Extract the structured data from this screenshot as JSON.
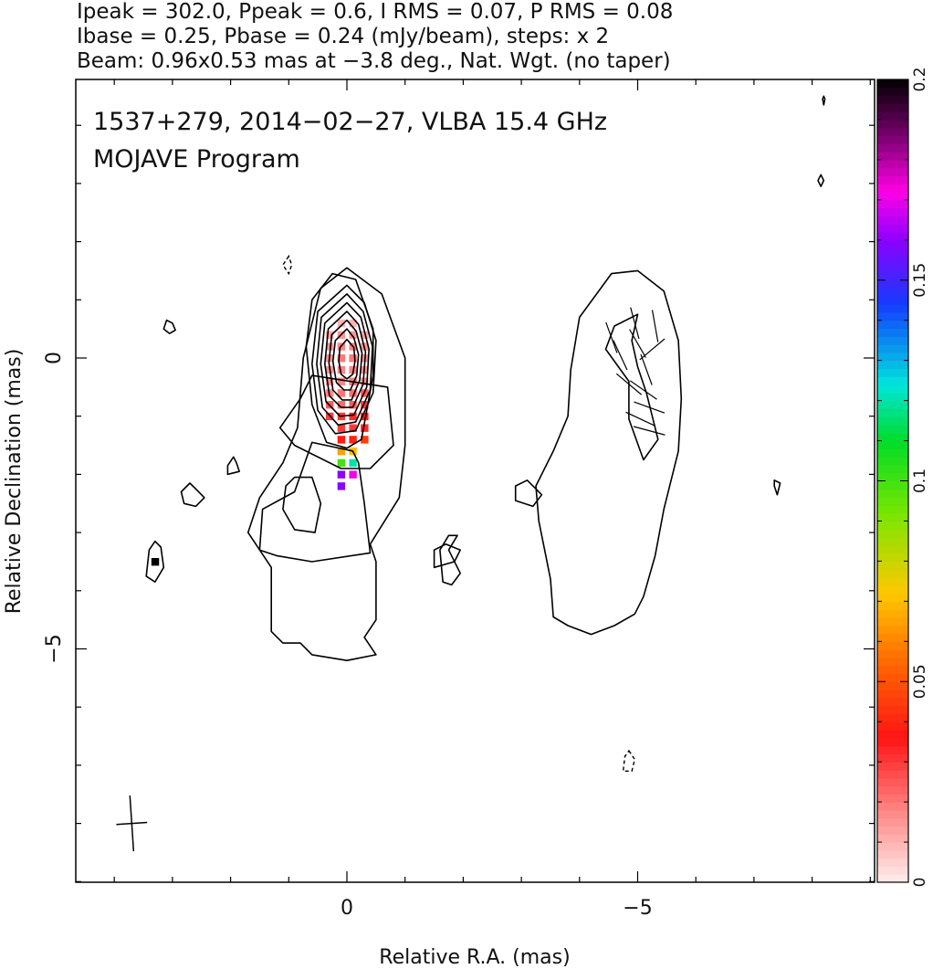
{
  "header": {
    "line1": "Ipeak = 302.0, Ppeak = 0.6, I RMS = 0.07, P RMS = 0.08",
    "line2": "Ibase = 0.25, Pbase = 0.24 (mJy/beam), steps: x 2",
    "line3": "Beam: 0.96x0.53 mas at −3.8 deg., Nat. Wgt. (no taper)"
  },
  "plot_labels": {
    "title": "1537+279, 2014−02−27, VLBA 15.4 GHz",
    "program": "MOJAVE Program"
  },
  "chart_data": {
    "type": "heatmap",
    "xlabel": "Relative R.A. (mas)",
    "ylabel": "Relative Declination (mas)",
    "x_range": [
      4.0,
      -9.0
    ],
    "y_range": [
      -9.0,
      4.8
    ],
    "x_ticks": [
      {
        "value": 0,
        "label": "0"
      },
      {
        "value": -5,
        "label": "−5"
      }
    ],
    "y_ticks": [
      {
        "value": 0,
        "label": "0"
      },
      {
        "value": -5,
        "label": "−5"
      }
    ],
    "colorbar": {
      "range": [
        0,
        0.2
      ],
      "ticks": [
        {
          "value": 0,
          "label": "0"
        },
        {
          "value": 0.05,
          "label": "0.05"
        },
        {
          "value": 0.1,
          "label": "0.1"
        },
        {
          "value": 0.15,
          "label": "0.15"
        },
        {
          "value": 0.2,
          "label": "0.2"
        }
      ]
    },
    "image_stats": {
      "ipeak": 302.0,
      "ppeak": 0.6,
      "i_rms": 0.07,
      "p_rms": 0.08,
      "ibase": 0.25,
      "pbase": 0.24,
      "unit": "mJy/beam",
      "step_factor": 2
    },
    "beam": {
      "major_mas": 0.96,
      "minor_mas": 0.53,
      "pa_deg": -3.8
    },
    "core": {
      "x": 0,
      "y": 0
    },
    "pol_pixels": [
      {
        "x": 0.1,
        "y": 0.6,
        "v": 0.01
      },
      {
        "x": -0.1,
        "y": 0.6,
        "v": 0.01
      },
      {
        "x": 0.3,
        "y": 0.4,
        "v": 0.012
      },
      {
        "x": 0.1,
        "y": 0.4,
        "v": 0.015
      },
      {
        "x": -0.1,
        "y": 0.4,
        "v": 0.015
      },
      {
        "x": -0.3,
        "y": 0.4,
        "v": 0.012
      },
      {
        "x": 0.3,
        "y": 0.2,
        "v": 0.015
      },
      {
        "x": 0.1,
        "y": 0.2,
        "v": 0.018
      },
      {
        "x": -0.1,
        "y": 0.2,
        "v": 0.018
      },
      {
        "x": -0.3,
        "y": 0.2,
        "v": 0.015
      },
      {
        "x": 0.3,
        "y": 0.0,
        "v": 0.015
      },
      {
        "x": 0.1,
        "y": 0.0,
        "v": 0.02
      },
      {
        "x": -0.1,
        "y": 0.0,
        "v": 0.02
      },
      {
        "x": -0.3,
        "y": 0.0,
        "v": 0.015
      },
      {
        "x": 0.3,
        "y": -0.2,
        "v": 0.015
      },
      {
        "x": 0.1,
        "y": -0.2,
        "v": 0.018
      },
      {
        "x": -0.1,
        "y": -0.2,
        "v": 0.018
      },
      {
        "x": -0.3,
        "y": -0.2,
        "v": 0.015
      },
      {
        "x": 0.3,
        "y": -0.4,
        "v": 0.015
      },
      {
        "x": 0.1,
        "y": -0.4,
        "v": 0.018
      },
      {
        "x": -0.1,
        "y": -0.4,
        "v": 0.02
      },
      {
        "x": -0.3,
        "y": -0.4,
        "v": 0.015
      },
      {
        "x": 0.3,
        "y": -0.6,
        "v": 0.018
      },
      {
        "x": 0.1,
        "y": -0.6,
        "v": 0.02
      },
      {
        "x": -0.1,
        "y": -0.6,
        "v": 0.022
      },
      {
        "x": -0.3,
        "y": -0.6,
        "v": 0.025
      },
      {
        "x": 0.3,
        "y": -0.8,
        "v": 0.025
      },
      {
        "x": 0.1,
        "y": -0.8,
        "v": 0.022
      },
      {
        "x": -0.1,
        "y": -0.8,
        "v": 0.025
      },
      {
        "x": -0.3,
        "y": -0.8,
        "v": 0.03
      },
      {
        "x": 0.3,
        "y": -1.0,
        "v": 0.03
      },
      {
        "x": 0.1,
        "y": -1.0,
        "v": 0.03
      },
      {
        "x": -0.1,
        "y": -1.0,
        "v": 0.032
      },
      {
        "x": -0.3,
        "y": -1.0,
        "v": 0.035
      },
      {
        "x": 0.1,
        "y": -1.2,
        "v": 0.03
      },
      {
        "x": -0.1,
        "y": -1.2,
        "v": 0.03
      },
      {
        "x": -0.3,
        "y": -1.2,
        "v": 0.033
      },
      {
        "x": 0.1,
        "y": -1.4,
        "v": 0.038
      },
      {
        "x": -0.1,
        "y": -1.4,
        "v": 0.04
      },
      {
        "x": -0.3,
        "y": -1.4,
        "v": 0.045
      },
      {
        "x": 0.1,
        "y": -1.6,
        "v": 0.065
      },
      {
        "x": -0.1,
        "y": -1.6,
        "v": 0.07
      },
      {
        "x": 0.1,
        "y": -1.8,
        "v": 0.1
      },
      {
        "x": -0.1,
        "y": -1.8,
        "v": 0.12
      },
      {
        "x": 0.1,
        "y": -2.0,
        "v": 0.16
      },
      {
        "x": -0.1,
        "y": -2.0,
        "v": 0.17
      },
      {
        "x": 0.1,
        "y": -2.2,
        "v": 0.16
      },
      {
        "x": 3.3,
        "y": -3.5,
        "v": 0.2
      }
    ],
    "contours": [
      [
        [
          -0.5,
          -5.1
        ],
        [
          -0.3,
          -4.8
        ],
        [
          -0.5,
          -4.5
        ],
        [
          -0.5,
          -3.5
        ],
        [
          -0.4,
          -3.2
        ],
        [
          -0.9,
          -2.4
        ],
        [
          -1.0,
          -1.5
        ],
        [
          -1.0,
          0
        ],
        [
          -0.6,
          1.1
        ],
        [
          0,
          1.55
        ],
        [
          0.45,
          1.2
        ],
        [
          0.75,
          0
        ],
        [
          0.85,
          -1.2
        ],
        [
          1.1,
          -1.8
        ],
        [
          1.5,
          -2.4
        ],
        [
          1.7,
          -3.0
        ],
        [
          1.3,
          -3.6
        ],
        [
          1.3,
          -4.3
        ],
        [
          1.3,
          -4.7
        ],
        [
          1.1,
          -4.9
        ],
        [
          0.8,
          -4.9
        ],
        [
          0.6,
          -5.1
        ],
        [
          0.0,
          -5.2
        ],
        [
          -0.5,
          -5.1
        ]
      ],
      [
        [
          -0.4,
          -3.35
        ],
        [
          -0.3,
          -2.5
        ],
        [
          -0.2,
          -1.8
        ],
        [
          -0.1,
          -1.6
        ],
        [
          0.6,
          -1.45
        ],
        [
          0.9,
          -2.3
        ],
        [
          1.45,
          -2.6
        ],
        [
          1.5,
          -3.3
        ],
        [
          1.2,
          -3.4
        ],
        [
          0.6,
          -3.5
        ],
        [
          -0.4,
          -3.35
        ]
      ],
      [
        [
          0.55,
          -3.0
        ],
        [
          0.9,
          -2.95
        ],
        [
          1.1,
          -2.6
        ],
        [
          1.05,
          -2.2
        ],
        [
          0.9,
          -2.05
        ],
        [
          0.6,
          -2.05
        ],
        [
          0.45,
          -2.5
        ],
        [
          0.55,
          -3.0
        ]
      ],
      [
        [
          -0.7,
          -0.5
        ],
        [
          -0.8,
          -1.5
        ],
        [
          -0.4,
          -1.9
        ],
        [
          0.1,
          -1.9
        ],
        [
          0.9,
          -1.5
        ],
        [
          1.15,
          -1.2
        ],
        [
          0.8,
          -0.7
        ],
        [
          0.6,
          -0.3
        ],
        [
          -0.7,
          -0.5
        ]
      ],
      [
        [
          -0.45,
          -0.3
        ],
        [
          -0.45,
          0.5
        ],
        [
          -0.15,
          1.35
        ],
        [
          0.25,
          1.45
        ],
        [
          0.6,
          1.0
        ],
        [
          0.7,
          0.2
        ],
        [
          0.6,
          -0.8
        ],
        [
          0.35,
          -1.45
        ],
        [
          0.0,
          -1.55
        ],
        [
          -0.25,
          -1.4
        ],
        [
          -0.45,
          -0.3
        ]
      ],
      [
        [
          0,
          1.25
        ],
        [
          0.5,
          0.8
        ],
        [
          0.6,
          -0.1
        ],
        [
          0.5,
          -0.9
        ],
        [
          0.2,
          -1.3
        ],
        [
          -0.15,
          -1.25
        ],
        [
          -0.45,
          -0.6
        ],
        [
          -0.5,
          0.3
        ],
        [
          -0.3,
          0.95
        ],
        [
          0,
          1.25
        ]
      ],
      [
        [
          0,
          1.1
        ],
        [
          0.44,
          0.7
        ],
        [
          0.52,
          -0.1
        ],
        [
          0.42,
          -0.85
        ],
        [
          0.15,
          -1.15
        ],
        [
          -0.15,
          -1.1
        ],
        [
          -0.4,
          -0.55
        ],
        [
          -0.44,
          0.2
        ],
        [
          -0.28,
          0.8
        ],
        [
          0,
          1.1
        ]
      ],
      [
        [
          0,
          0.95
        ],
        [
          0.38,
          0.6
        ],
        [
          0.45,
          -0.1
        ],
        [
          0.36,
          -0.75
        ],
        [
          0.12,
          -1.0
        ],
        [
          -0.12,
          -0.98
        ],
        [
          -0.34,
          -0.5
        ],
        [
          -0.38,
          0.15
        ],
        [
          -0.24,
          0.7
        ],
        [
          0,
          0.95
        ]
      ],
      [
        [
          0,
          0.8
        ],
        [
          0.32,
          0.5
        ],
        [
          0.38,
          -0.1
        ],
        [
          0.3,
          -0.65
        ],
        [
          0.1,
          -0.85
        ],
        [
          -0.1,
          -0.85
        ],
        [
          -0.28,
          -0.45
        ],
        [
          -0.32,
          0.1
        ],
        [
          -0.2,
          0.58
        ],
        [
          0,
          0.8
        ]
      ],
      [
        [
          0,
          0.65
        ],
        [
          0.26,
          0.4
        ],
        [
          0.31,
          -0.08
        ],
        [
          0.24,
          -0.55
        ],
        [
          0.08,
          -0.72
        ],
        [
          -0.08,
          -0.72
        ],
        [
          -0.22,
          -0.38
        ],
        [
          -0.26,
          0.08
        ],
        [
          -0.16,
          0.46
        ],
        [
          0,
          0.65
        ]
      ],
      [
        [
          0,
          0.5
        ],
        [
          0.2,
          0.3
        ],
        [
          0.24,
          -0.06
        ],
        [
          0.18,
          -0.42
        ],
        [
          0.05,
          -0.55
        ],
        [
          -0.06,
          -0.55
        ],
        [
          -0.17,
          -0.3
        ],
        [
          -0.2,
          0.06
        ],
        [
          -0.12,
          0.35
        ],
        [
          0,
          0.5
        ]
      ],
      [
        [
          0,
          0.32
        ],
        [
          0.12,
          0.18
        ],
        [
          0.14,
          -0.05
        ],
        [
          0.1,
          -0.28
        ],
        [
          0.0,
          -0.36
        ],
        [
          -0.1,
          -0.28
        ],
        [
          -0.14,
          -0.05
        ],
        [
          -0.12,
          0.18
        ],
        [
          0,
          0.32
        ]
      ],
      [
        [
          -3.55,
          -4.45
        ],
        [
          -3.5,
          -3.8
        ],
        [
          -3.4,
          -3.3
        ],
        [
          -3.3,
          -2.8
        ],
        [
          -3.25,
          -2.2
        ],
        [
          -3.55,
          -1.6
        ],
        [
          -3.8,
          -1.0
        ],
        [
          -3.85,
          -0.2
        ],
        [
          -4.0,
          0.7
        ],
        [
          -4.55,
          1.45
        ],
        [
          -5.0,
          1.5
        ],
        [
          -5.45,
          1.15
        ],
        [
          -5.7,
          0.3
        ],
        [
          -5.75,
          -0.7
        ],
        [
          -5.7,
          -1.6
        ],
        [
          -5.45,
          -2.6
        ],
        [
          -5.3,
          -3.4
        ],
        [
          -5.1,
          -4.1
        ],
        [
          -4.95,
          -4.4
        ],
        [
          -4.6,
          -4.6
        ],
        [
          -4.2,
          -4.75
        ],
        [
          -3.8,
          -4.6
        ],
        [
          -3.55,
          -4.45
        ]
      ],
      [
        [
          -5.0,
          0.75
        ],
        [
          -4.6,
          0.55
        ],
        [
          -4.45,
          0.15
        ],
        [
          -4.85,
          -0.4
        ],
        [
          -4.85,
          -1.05
        ],
        [
          -5.1,
          -1.75
        ],
        [
          -5.35,
          -1.4
        ],
        [
          -5.15,
          -0.6
        ],
        [
          -5.0,
          -0.15
        ],
        [
          -4.9,
          0.3
        ],
        [
          -5.0,
          0.75
        ]
      ],
      [
        [
          -2.9,
          -2.2
        ],
        [
          -3.1,
          -2.1
        ],
        [
          -3.35,
          -2.35
        ],
        [
          -3.2,
          -2.55
        ],
        [
          -2.9,
          -2.45
        ],
        [
          -2.9,
          -2.2
        ]
      ],
      [
        [
          -1.7,
          -3.2
        ],
        [
          -1.95,
          -3.3
        ],
        [
          -1.85,
          -3.5
        ],
        [
          -1.5,
          -3.6
        ],
        [
          -1.5,
          -3.3
        ],
        [
          -1.7,
          -3.2
        ]
      ],
      [
        [
          -1.9,
          -3.05
        ],
        [
          -1.75,
          -3.3
        ],
        [
          -1.95,
          -3.7
        ],
        [
          -1.8,
          -3.9
        ],
        [
          -1.65,
          -3.85
        ],
        [
          -1.6,
          -3.3
        ],
        [
          -1.75,
          -3.05
        ],
        [
          -1.9,
          -3.05
        ]
      ],
      [
        [
          2.7,
          -2.15
        ],
        [
          2.6,
          -2.25
        ],
        [
          2.45,
          -2.4
        ],
        [
          2.6,
          -2.55
        ],
        [
          2.8,
          -2.5
        ],
        [
          2.85,
          -2.3
        ],
        [
          2.7,
          -2.15
        ]
      ],
      [
        [
          1.95,
          -1.7
        ],
        [
          2.05,
          -1.85
        ],
        [
          2.05,
          -2.0
        ],
        [
          1.85,
          -1.95
        ],
        [
          1.9,
          -1.8
        ],
        [
          1.95,
          -1.7
        ]
      ],
      [
        [
          3.3,
          -3.15
        ],
        [
          3.2,
          -3.25
        ],
        [
          3.15,
          -3.6
        ],
        [
          3.3,
          -3.85
        ],
        [
          3.45,
          -3.75
        ],
        [
          3.4,
          -3.3
        ],
        [
          3.3,
          -3.15
        ]
      ],
      [
        [
          3.1,
          0.65
        ],
        [
          3.0,
          0.6
        ],
        [
          2.95,
          0.48
        ],
        [
          3.05,
          0.42
        ],
        [
          3.15,
          0.5
        ],
        [
          3.1,
          0.65
        ]
      ],
      [
        [
          -7.35,
          -2.1
        ],
        [
          -7.45,
          -2.15
        ],
        [
          -7.4,
          -2.35
        ],
        [
          -7.35,
          -2.2
        ],
        [
          -7.35,
          -2.1
        ]
      ],
      [
        [
          -8.15,
          3.15
        ],
        [
          -8.1,
          3.05
        ],
        [
          -8.15,
          2.95
        ],
        [
          -8.2,
          3.05
        ],
        [
          -8.15,
          3.15
        ]
      ],
      [
        [
          -8.2,
          4.5
        ],
        [
          -8.22,
          4.45
        ],
        [
          -8.2,
          4.35
        ],
        [
          -8.18,
          4.45
        ],
        [
          -8.2,
          4.5
        ]
      ]
    ],
    "neg_contours": [
      [
        [
          1.0,
          1.75
        ],
        [
          1.1,
          1.6
        ],
        [
          1.0,
          1.45
        ],
        [
          0.95,
          1.6
        ],
        [
          1.0,
          1.75
        ]
      ],
      [
        [
          -4.85,
          -6.75
        ],
        [
          -4.95,
          -6.9
        ],
        [
          -4.9,
          -7.1
        ],
        [
          -4.75,
          -7.1
        ],
        [
          -4.78,
          -6.85
        ],
        [
          -4.85,
          -6.75
        ]
      ]
    ],
    "evpa_vectors": [
      {
        "x": -5.3,
        "y": 0.55,
        "angle": 80
      },
      {
        "x": -4.95,
        "y": 0.6,
        "angle": 75
      },
      {
        "x": -4.55,
        "y": 0.35,
        "angle": 70
      },
      {
        "x": -5.0,
        "y": 0.25,
        "angle": 60
      },
      {
        "x": -4.7,
        "y": 0.05,
        "angle": 65
      },
      {
        "x": -5.25,
        "y": 0.15,
        "angle": -40
      },
      {
        "x": -5.15,
        "y": -0.2,
        "angle": 70
      },
      {
        "x": -4.85,
        "y": -0.45,
        "angle": 40
      },
      {
        "x": -5.1,
        "y": -0.55,
        "angle": 35
      },
      {
        "x": -5.2,
        "y": -0.85,
        "angle": 20
      },
      {
        "x": -5.05,
        "y": -1.05,
        "angle": 25
      },
      {
        "x": -5.2,
        "y": -1.25,
        "angle": 15
      }
    ]
  },
  "colors": {
    "frame": "#000000",
    "contour": "#000000",
    "background": "#ffffff"
  }
}
